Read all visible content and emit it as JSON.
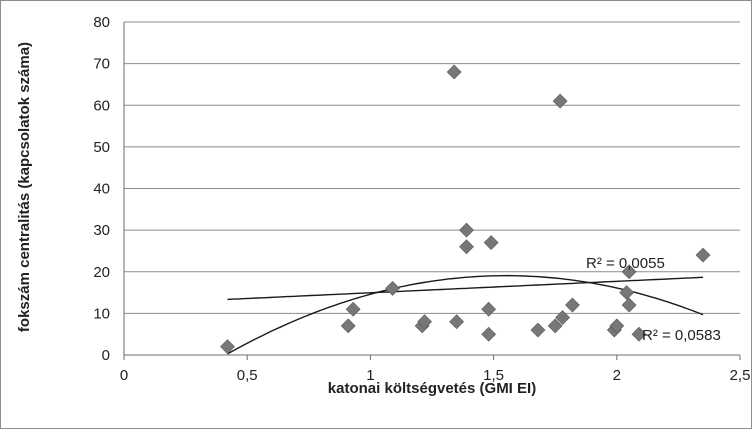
{
  "chart_data": {
    "type": "scatter",
    "xlabel": "katonai költségvetés (GMI EI)",
    "ylabel": "fokszám centralitás (kapcsolatok száma)",
    "xlim": [
      0,
      2.5
    ],
    "ylim": [
      0,
      80
    ],
    "x_ticks": [
      "0",
      "0,5",
      "1",
      "1,5",
      "2",
      "2,5"
    ],
    "y_ticks": [
      "0",
      "10",
      "20",
      "30",
      "40",
      "50",
      "60",
      "70",
      "80"
    ],
    "grid": "horizontal",
    "marker": "diamond",
    "marker_color": "#777777",
    "points": [
      {
        "x": 0.42,
        "y": 2
      },
      {
        "x": 0.91,
        "y": 7
      },
      {
        "x": 0.93,
        "y": 11
      },
      {
        "x": 1.09,
        "y": 16
      },
      {
        "x": 1.21,
        "y": 7
      },
      {
        "x": 1.22,
        "y": 8
      },
      {
        "x": 1.34,
        "y": 68
      },
      {
        "x": 1.35,
        "y": 8
      },
      {
        "x": 1.39,
        "y": 30
      },
      {
        "x": 1.39,
        "y": 26
      },
      {
        "x": 1.48,
        "y": 11
      },
      {
        "x": 1.48,
        "y": 5
      },
      {
        "x": 1.49,
        "y": 27
      },
      {
        "x": 1.68,
        "y": 6
      },
      {
        "x": 1.75,
        "y": 7
      },
      {
        "x": 1.77,
        "y": 61
      },
      {
        "x": 1.78,
        "y": 9
      },
      {
        "x": 1.82,
        "y": 12
      },
      {
        "x": 1.99,
        "y": 6
      },
      {
        "x": 2.0,
        "y": 7
      },
      {
        "x": 2.04,
        "y": 15
      },
      {
        "x": 2.05,
        "y": 20
      },
      {
        "x": 2.05,
        "y": 12
      },
      {
        "x": 2.09,
        "y": 5
      },
      {
        "x": 2.35,
        "y": 24
      }
    ],
    "trendlines": [
      {
        "kind": "linear",
        "label": "R² = 0,0055",
        "x_from": 0.42,
        "x_to": 2.35,
        "slope": 2.75,
        "intercept": 12.2
      },
      {
        "kind": "polynomial-2",
        "label": "R² = 0,0583",
        "x_from": 0.42,
        "x_to": 2.35,
        "a": -14.7,
        "b": 45.6,
        "c": -16.3
      }
    ]
  }
}
